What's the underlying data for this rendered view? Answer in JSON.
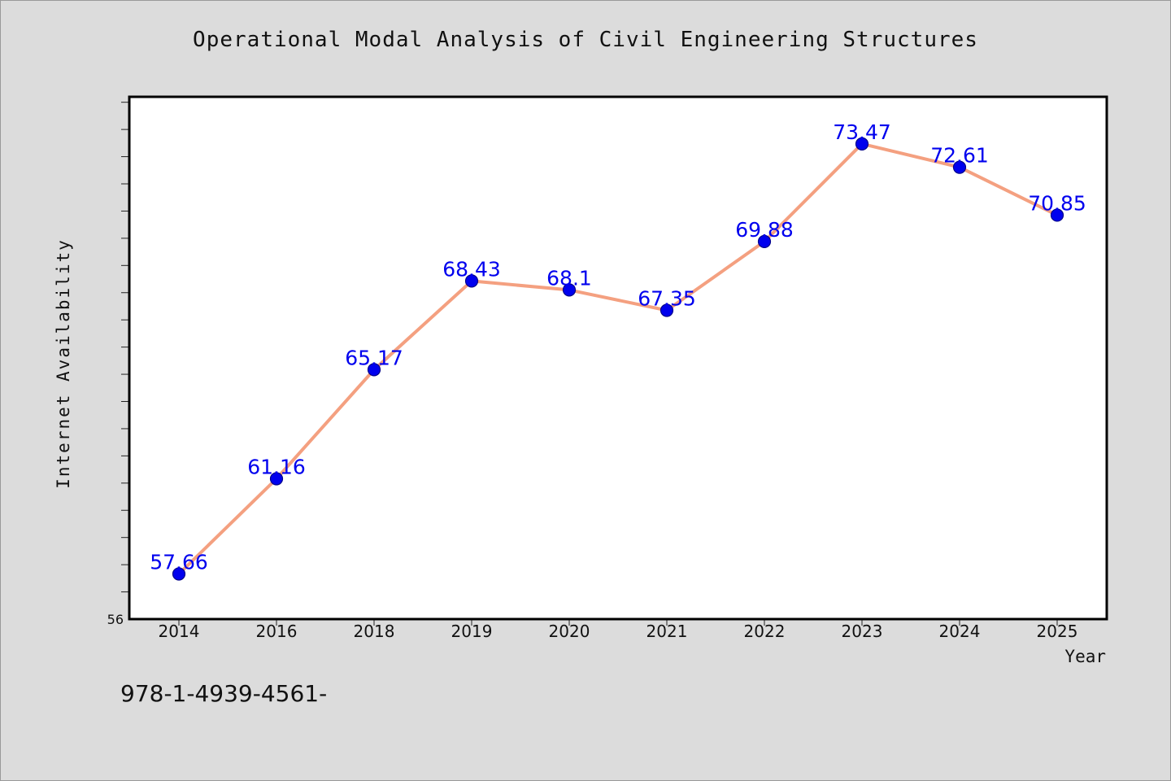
{
  "chart_data": {
    "type": "line",
    "title": "Operational Modal Analysis of Civil Engineering Structures",
    "xlabel": "Year",
    "ylabel": "Internet Availability",
    "categories": [
      "2014",
      "2016",
      "2018",
      "2019",
      "2020",
      "2021",
      "2022",
      "2023",
      "2024",
      "2025"
    ],
    "series": [
      {
        "values": [
          57.66,
          61.16,
          65.17,
          68.43,
          68.1,
          67.35,
          69.88,
          73.47,
          72.61,
          70.85
        ],
        "labels": [
          "57.66",
          "61.16",
          "65.17",
          "68.43",
          "68.1",
          "67.35",
          "69.88",
          "73.47",
          "72.61",
          "70.85"
        ],
        "line_color": "#f4a080",
        "marker_color": "#0000ee",
        "label_color": "#0000ee"
      }
    ],
    "ylim": [
      56,
      75.2
    ],
    "y_tick_label": "56",
    "y_minor_tick_step": 1,
    "grid": false,
    "legend": "none"
  },
  "footer": {
    "isbn_text": "978-1-4939-4561-"
  }
}
